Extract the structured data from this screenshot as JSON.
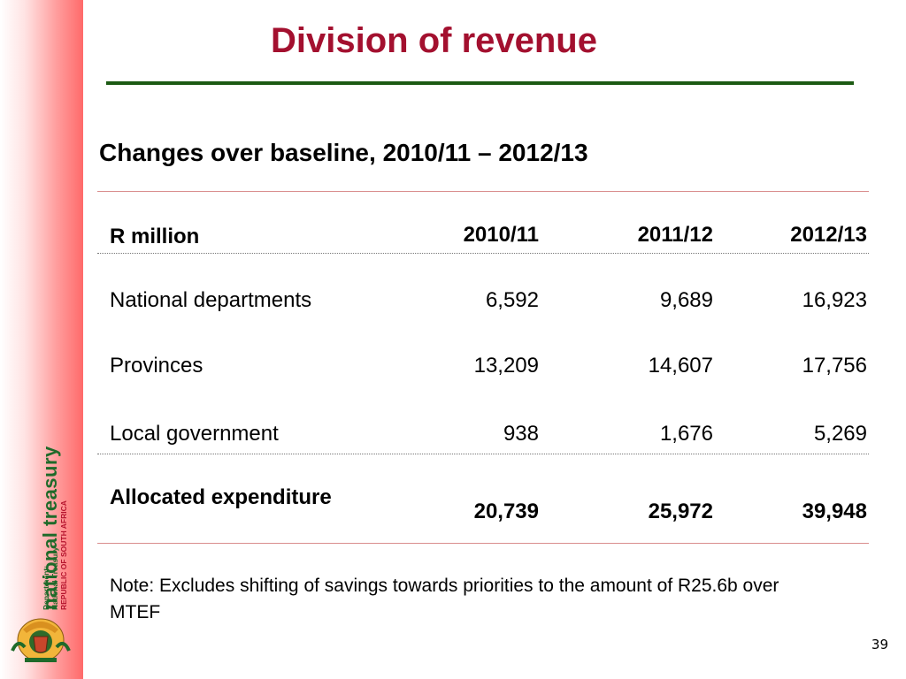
{
  "slide": {
    "title": "Division of revenue",
    "subtitle": "Changes over baseline, 2010/11 – 2012/13",
    "page_number": "39",
    "note": "Note: Excludes shifting of savings towards priorities to the amount of R25.6b over MTEF"
  },
  "sidebar": {
    "brand_name": "national treasury",
    "dept_line1": "Department:",
    "dept_line2": "National Treasury",
    "dept_line3": "REPUBLIC OF SOUTH AFRICA"
  },
  "table": {
    "header": {
      "label": "R million",
      "col1": "2010/11",
      "col2": "2011/12",
      "col3": "2012/13"
    },
    "rows": [
      {
        "label": "National departments",
        "col1": "6,592",
        "col2": "9,689",
        "col3": "16,923"
      },
      {
        "label": "Provinces",
        "col1": "13,209",
        "col2": "14,607",
        "col3": "17,756"
      },
      {
        "label": "Local government",
        "col1": "938",
        "col2": "1,676",
        "col3": "5,269"
      }
    ],
    "total": {
      "label": "Allocated expenditure",
      "col1": "20,739",
      "col2": "25,972",
      "col3": "39,948"
    }
  },
  "colors": {
    "title": "#a3102f",
    "rule": "#1c5a13",
    "brand": "#1f6a2a"
  }
}
